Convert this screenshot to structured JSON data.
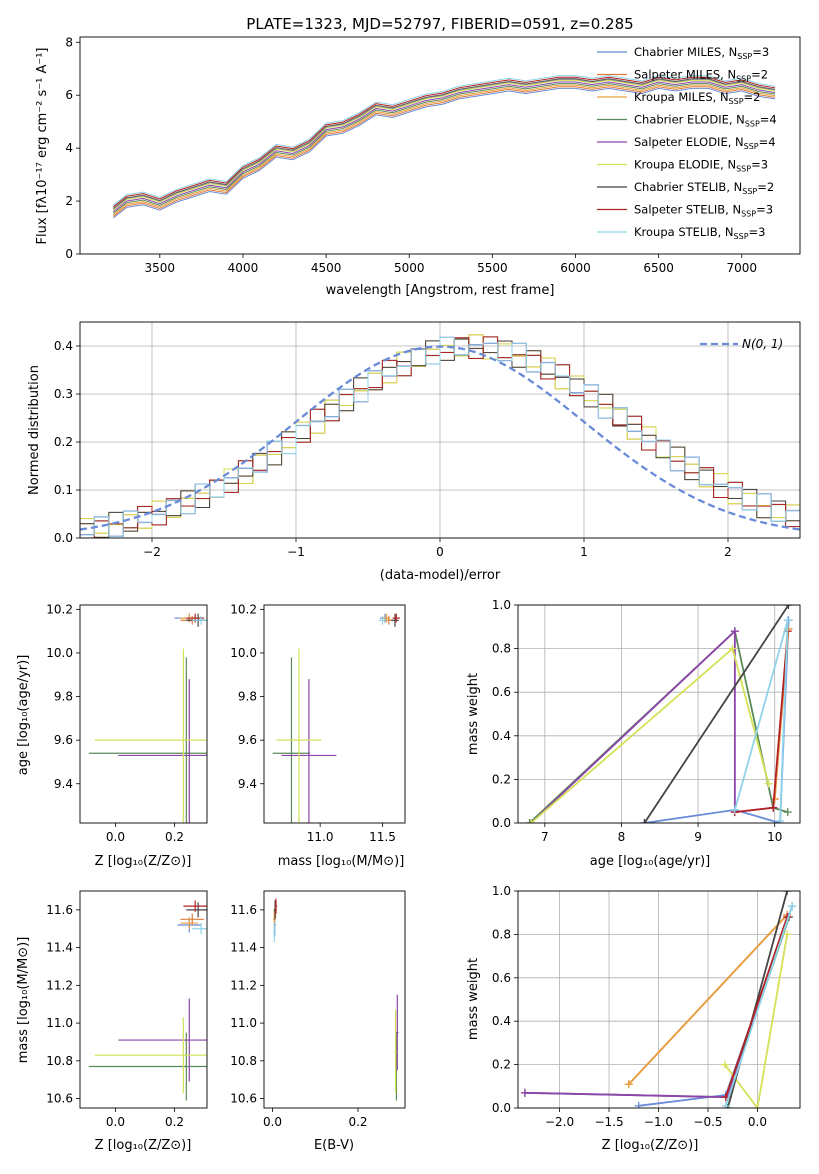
{
  "chart_data": [
    {
      "id": "spectrum",
      "type": "line",
      "title": "PLATE=1323, MJD=52797, FIBERID=0591, z=0.285",
      "xlabel": "wavelength [Angstrom, rest frame]",
      "ylabel": "Flux [fλ10⁻¹⁷ erg cm⁻² s⁻¹ A⁻¹]",
      "xlim": [
        3020,
        7350
      ],
      "ylim": [
        0,
        8.2
      ],
      "xticks": [
        3500,
        4000,
        4500,
        5000,
        5500,
        6000,
        6500,
        7000
      ],
      "yticks": [
        0,
        2,
        4,
        6,
        8
      ],
      "legend": "upper right",
      "legend_entries": [
        {
          "label": "Chabrier MILES, N",
          "sub": "SSP",
          "count": "=3",
          "color": "#6a8bd8"
        },
        {
          "label": "Salpeter MILES, N",
          "sub": "SSP",
          "count": "=2",
          "color": "#e07b39"
        },
        {
          "label": "Kroupa MILES, N",
          "sub": "SSP",
          "count": "=2",
          "color": "#e8a040"
        },
        {
          "label": "Chabrier ELODIE, N",
          "sub": "SSP",
          "count": "=4",
          "color": "#5a8a5a"
        },
        {
          "label": "Salpeter ELODIE, N",
          "sub": "SSP",
          "count": "=4",
          "color": "#8e44ad"
        },
        {
          "label": "Kroupa ELODIE, N",
          "sub": "SSP",
          "count": "=3",
          "color": "#d4e157"
        },
        {
          "label": "Chabrier STELIB, N",
          "sub": "SSP",
          "count": "=2",
          "color": "#444444"
        },
        {
          "label": "Salpeter STELIB, N",
          "sub": "SSP",
          "count": "=3",
          "color": "#b22222"
        },
        {
          "label": "Kroupa STELIB, N",
          "sub": "SSP",
          "count": "=3",
          "color": "#8fd3e8"
        }
      ],
      "data_color": "#808080",
      "data_x": [
        3220,
        3300,
        3400,
        3500,
        3600,
        3700,
        3800,
        3900,
        4000,
        4100,
        4200,
        4300,
        4400,
        4500,
        4600,
        4700,
        4800,
        4900,
        5000,
        5100,
        5200,
        5300,
        5400,
        5500,
        5600,
        5700,
        5800,
        5900,
        6000,
        6100,
        6200,
        6300,
        6400,
        6500,
        6600,
        6700,
        6800,
        6900,
        7000,
        7100,
        7200
      ],
      "data_y": [
        1.7,
        2.1,
        2.2,
        2.0,
        2.3,
        2.5,
        2.7,
        2.6,
        3.2,
        3.5,
        4.0,
        3.9,
        4.2,
        4.8,
        4.9,
        5.2,
        5.6,
        5.5,
        5.7,
        5.9,
        6.0,
        6.2,
        6.3,
        6.4,
        6.5,
        6.4,
        6.5,
        6.6,
        6.6,
        6.5,
        6.6,
        6.5,
        6.4,
        6.6,
        6.5,
        6.6,
        6.6,
        6.4,
        6.5,
        6.3,
        6.2
      ],
      "model_y": [
        1.6,
        2.0,
        2.1,
        1.9,
        2.2,
        2.4,
        2.6,
        2.5,
        3.1,
        3.4,
        3.9,
        3.8,
        4.1,
        4.7,
        4.8,
        5.1,
        5.5,
        5.4,
        5.6,
        5.8,
        5.9,
        6.1,
        6.2,
        6.3,
        6.4,
        6.3,
        6.4,
        6.5,
        6.5,
        6.4,
        6.5,
        6.4,
        6.3,
        6.5,
        6.4,
        6.5,
        6.5,
        6.3,
        6.4,
        6.2,
        6.1
      ]
    },
    {
      "id": "residuals",
      "type": "line",
      "xlabel": "(data-model)/error",
      "ylabel": "Normed distribution",
      "xlim": [
        -2.5,
        2.5
      ],
      "ylim": [
        0,
        0.45
      ],
      "xticks": [
        -2,
        -1,
        0,
        1,
        2
      ],
      "xtick_labels": [
        "−2",
        "−1",
        "0",
        "1",
        "2"
      ],
      "yticks": [
        0.0,
        0.1,
        0.2,
        0.3,
        0.4
      ],
      "ytick_labels": [
        "0.0",
        "0.1",
        "0.2",
        "0.3",
        "0.4"
      ],
      "grid": true,
      "legend": "upper right",
      "legend_label": "N(0, 1)",
      "gauss_color": "#6a8bd8"
    },
    {
      "id": "age-vs-Z",
      "type": "scatter",
      "xlabel": "Z [log₁₀(Z/Z⊙)]",
      "ylabel": "age  [log₁₀(age/yr)]",
      "xlim": [
        -0.12,
        0.31
      ],
      "ylim": [
        9.22,
        10.22
      ],
      "xticks": [
        0.0,
        0.2
      ],
      "xtick_labels": [
        "0.0",
        "0.2"
      ],
      "yticks": [
        9.4,
        9.6,
        9.8,
        10.0,
        10.2
      ],
      "ytick_labels": [
        "9.4",
        "9.6",
        "9.8",
        "10.0",
        "10.2"
      ],
      "points": [
        {
          "x": 0.25,
          "y": 10.16,
          "xerr": 0.05,
          "yerr": 0.02,
          "color": "#6a8bd8"
        },
        {
          "x": 0.26,
          "y": 10.15,
          "xerr": 0.04,
          "yerr": 0.02,
          "color": "#e07b39"
        },
        {
          "x": 0.25,
          "y": 10.16,
          "xerr": 0.03,
          "yerr": 0.02,
          "color": "#e8a040"
        },
        {
          "x": 0.24,
          "y": 9.54,
          "xerr": 0.33,
          "yerr": 0.44,
          "color": "#5a8a5a"
        },
        {
          "x": 0.25,
          "y": 9.53,
          "xerr": 0.24,
          "yerr": 0.35,
          "color": "#8e44ad"
        },
        {
          "x": 0.23,
          "y": 9.6,
          "xerr": 0.3,
          "yerr": 0.42,
          "color": "#d4e157"
        },
        {
          "x": 0.28,
          "y": 10.15,
          "xerr": 0.04,
          "yerr": 0.03,
          "color": "#444444"
        },
        {
          "x": 0.27,
          "y": 10.16,
          "xerr": 0.03,
          "yerr": 0.02,
          "color": "#b22222"
        },
        {
          "x": 0.29,
          "y": 10.15,
          "xerr": 0.03,
          "yerr": 0.02,
          "color": "#8fd3e8"
        }
      ]
    },
    {
      "id": "age-vs-mass",
      "type": "scatter",
      "xlabel": "mass [log₁₀(M/M⊙)]",
      "xlim": [
        10.55,
        11.68
      ],
      "ylim": [
        9.22,
        10.22
      ],
      "xticks": [
        11.0,
        11.5
      ],
      "xtick_labels": [
        "11.0",
        "11.5"
      ],
      "yticks": [
        9.4,
        9.6,
        9.8,
        10.0,
        10.2
      ],
      "ytick_labels": [
        "9.4",
        "9.6",
        "9.8",
        "10.0",
        "10.2"
      ],
      "points": [
        {
          "x": 11.52,
          "y": 10.16,
          "xerr": 0.04,
          "yerr": 0.02,
          "color": "#6a8bd8"
        },
        {
          "x": 11.55,
          "y": 10.15,
          "xerr": 0.03,
          "yerr": 0.02,
          "color": "#e07b39"
        },
        {
          "x": 11.53,
          "y": 10.16,
          "xerr": 0.03,
          "yerr": 0.02,
          "color": "#e8a040"
        },
        {
          "x": 10.77,
          "y": 9.54,
          "xerr": 0.15,
          "yerr": 0.44,
          "color": "#5a8a5a"
        },
        {
          "x": 10.91,
          "y": 9.53,
          "xerr": 0.22,
          "yerr": 0.35,
          "color": "#8e44ad"
        },
        {
          "x": 10.83,
          "y": 9.6,
          "xerr": 0.18,
          "yerr": 0.42,
          "color": "#d4e157"
        },
        {
          "x": 11.6,
          "y": 10.15,
          "xerr": 0.03,
          "yerr": 0.03,
          "color": "#444444"
        },
        {
          "x": 11.61,
          "y": 10.16,
          "xerr": 0.03,
          "yerr": 0.02,
          "color": "#b22222"
        },
        {
          "x": 11.5,
          "y": 10.15,
          "xerr": 0.03,
          "yerr": 0.02,
          "color": "#8fd3e8"
        }
      ]
    },
    {
      "id": "mass-weight-vs-age",
      "type": "line",
      "xlabel": "age  [log₁₀(age/yr)]",
      "ylabel": "mass weight",
      "xlim": [
        6.65,
        10.33
      ],
      "ylim": [
        0,
        1.0
      ],
      "xticks": [
        7,
        8,
        9,
        10
      ],
      "xtick_labels": [
        "7",
        "8",
        "9",
        "10"
      ],
      "yticks": [
        0.0,
        0.2,
        0.4,
        0.6,
        0.8,
        1.0
      ],
      "ytick_labels": [
        "0.0",
        "0.2",
        "0.4",
        "0.6",
        "0.8",
        "1.0"
      ],
      "grid": true,
      "series": [
        {
          "color": "#6a8bd8",
          "x": [
            8.3,
            9.48,
            10.07,
            10.18
          ],
          "y": [
            0.0,
            0.06,
            0.0,
            0.93
          ]
        },
        {
          "color": "#e07b39",
          "x": [
            10.0,
            10.18
          ],
          "y": [
            0.11,
            0.89
          ]
        },
        {
          "color": "#e8a040",
          "x": [
            10.0,
            10.17
          ],
          "y": [
            0.11,
            0.89
          ]
        },
        {
          "color": "#5a8a5a",
          "x": [
            6.8,
            9.48,
            9.98,
            10.17
          ],
          "y": [
            0.0,
            0.88,
            0.07,
            0.05
          ]
        },
        {
          "color": "#8e44ad",
          "x": [
            6.82,
            9.48,
            9.48,
            9.98
          ],
          "y": [
            0.0,
            0.88,
            0.05,
            0.07
          ]
        },
        {
          "color": "#d4e157",
          "x": [
            6.82,
            9.45,
            9.92
          ],
          "y": [
            0.0,
            0.8,
            0.18
          ]
        },
        {
          "color": "#444444",
          "x": [
            8.3,
            10.18
          ],
          "y": [
            0.0,
            1.0
          ]
        },
        {
          "color": "#b22222",
          "x": [
            9.48,
            9.98,
            10.17
          ],
          "y": [
            0.05,
            0.07,
            0.88
          ]
        },
        {
          "color": "#8fd3e8",
          "x": [
            9.48,
            10.17,
            10.07
          ],
          "y": [
            0.06,
            0.93,
            0.01
          ]
        }
      ]
    },
    {
      "id": "mass-vs-Z",
      "type": "scatter",
      "xlabel": "Z [log₁₀(Z/Z⊙)]",
      "ylabel": "mass [log₁₀(M/M⊙)]",
      "xlim": [
        -0.12,
        0.31
      ],
      "ylim": [
        10.55,
        11.7
      ],
      "xticks": [
        0.0,
        0.2
      ],
      "xtick_labels": [
        "0.0",
        "0.2"
      ],
      "yticks": [
        10.6,
        10.8,
        11.0,
        11.2,
        11.4,
        11.6
      ],
      "ytick_labels": [
        "10.6",
        "10.8",
        "11.0",
        "11.2",
        "11.4",
        "11.6"
      ],
      "points": [
        {
          "x": 0.25,
          "y": 11.52,
          "xerr": 0.04,
          "yerr": 0.04,
          "color": "#6a8bd8"
        },
        {
          "x": 0.26,
          "y": 11.55,
          "xerr": 0.04,
          "yerr": 0.03,
          "color": "#e07b39"
        },
        {
          "x": 0.25,
          "y": 11.53,
          "xerr": 0.03,
          "yerr": 0.03,
          "color": "#e8a040"
        },
        {
          "x": 0.24,
          "y": 10.77,
          "xerr": 0.33,
          "yerr": 0.18,
          "color": "#5a8a5a"
        },
        {
          "x": 0.25,
          "y": 10.91,
          "xerr": 0.24,
          "yerr": 0.22,
          "color": "#8e44ad"
        },
        {
          "x": 0.23,
          "y": 10.83,
          "xerr": 0.3,
          "yerr": 0.2,
          "color": "#d4e157"
        },
        {
          "x": 0.28,
          "y": 11.6,
          "xerr": 0.04,
          "yerr": 0.04,
          "color": "#444444"
        },
        {
          "x": 0.27,
          "y": 11.62,
          "xerr": 0.04,
          "yerr": 0.03,
          "color": "#b22222"
        },
        {
          "x": 0.29,
          "y": 11.5,
          "xerr": 0.03,
          "yerr": 0.03,
          "color": "#8fd3e8"
        }
      ]
    },
    {
      "id": "mass-vs-EBV",
      "type": "scatter",
      "xlabel": "E(B-V)",
      "xlim": [
        -0.02,
        0.31
      ],
      "ylim": [
        10.55,
        11.7
      ],
      "xticks": [
        0.0,
        0.2
      ],
      "xtick_labels": [
        "0.0",
        "0.2"
      ],
      "yticks": [
        10.6,
        10.8,
        11.0,
        11.2,
        11.4,
        11.6
      ],
      "ytick_labels": [
        "10.6",
        "10.8",
        "11.0",
        "11.2",
        "11.4",
        "11.6"
      ],
      "points": [
        {
          "x": 0.005,
          "y": 11.52,
          "xerr": 0.003,
          "yerr": 0.06,
          "color": "#6a8bd8"
        },
        {
          "x": 0.007,
          "y": 11.6,
          "xerr": 0.003,
          "yerr": 0.04,
          "color": "#e07b39"
        },
        {
          "x": 0.004,
          "y": 11.55,
          "xerr": 0.003,
          "yerr": 0.05,
          "color": "#e8a040"
        },
        {
          "x": 0.29,
          "y": 10.77,
          "xerr": 0.003,
          "yerr": 0.18,
          "color": "#5a8a5a"
        },
        {
          "x": 0.292,
          "y": 10.95,
          "xerr": 0.003,
          "yerr": 0.2,
          "color": "#8e44ad"
        },
        {
          "x": 0.288,
          "y": 10.85,
          "xerr": 0.003,
          "yerr": 0.22,
          "color": "#d4e157"
        },
        {
          "x": 0.006,
          "y": 11.6,
          "xerr": 0.003,
          "yerr": 0.05,
          "color": "#444444"
        },
        {
          "x": 0.008,
          "y": 11.62,
          "xerr": 0.003,
          "yerr": 0.04,
          "color": "#b22222"
        },
        {
          "x": 0.004,
          "y": 11.48,
          "xerr": 0.003,
          "yerr": 0.05,
          "color": "#8fd3e8"
        }
      ]
    },
    {
      "id": "mass-weight-vs-Z",
      "type": "line",
      "xlabel": "Z [log₁₀(Z/Z⊙)]",
      "ylabel": "mass weight",
      "xlim": [
        -2.42,
        0.43
      ],
      "ylim": [
        0,
        1.0
      ],
      "xticks": [
        -2.0,
        -1.5,
        -1.0,
        -0.5,
        0.0
      ],
      "xtick_labels": [
        "−2.0",
        "−1.5",
        "−1.0",
        "−0.5",
        "0.0"
      ],
      "yticks": [
        0.0,
        0.2,
        0.4,
        0.6,
        0.8,
        1.0
      ],
      "ytick_labels": [
        "0.0",
        "0.2",
        "0.4",
        "0.6",
        "0.8",
        "1.0"
      ],
      "grid": true,
      "series": [
        {
          "color": "#6a8bd8",
          "x": [
            -1.2,
            -0.32,
            0.35
          ],
          "y": [
            0.01,
            0.06,
            0.93
          ]
        },
        {
          "color": "#e07b39",
          "x": [
            -1.3,
            0.3
          ],
          "y": [
            0.11,
            0.89
          ]
        },
        {
          "color": "#e8a040",
          "x": [
            -1.3,
            0.3
          ],
          "y": [
            0.11,
            0.89
          ]
        },
        {
          "color": "#5a8a5a",
          "x": [
            -2.35,
            -0.3,
            0.32
          ],
          "y": [
            0.07,
            0.05,
            0.88
          ]
        },
        {
          "color": "#8e44ad",
          "x": [
            -2.35,
            -0.3,
            0.31
          ],
          "y": [
            0.07,
            0.05,
            0.88
          ]
        },
        {
          "color": "#d4e157",
          "x": [
            -0.33,
            0.0,
            0.3
          ],
          "y": [
            0.2,
            0.0,
            0.8
          ]
        },
        {
          "color": "#444444",
          "x": [
            -0.3,
            0.3
          ],
          "y": [
            0.0,
            1.0
          ]
        },
        {
          "color": "#b22222",
          "x": [
            -0.32,
            0.3
          ],
          "y": [
            0.05,
            0.88
          ]
        },
        {
          "color": "#8fd3e8",
          "x": [
            -0.32,
            0.35
          ],
          "y": [
            0.01,
            0.93
          ]
        }
      ]
    }
  ]
}
